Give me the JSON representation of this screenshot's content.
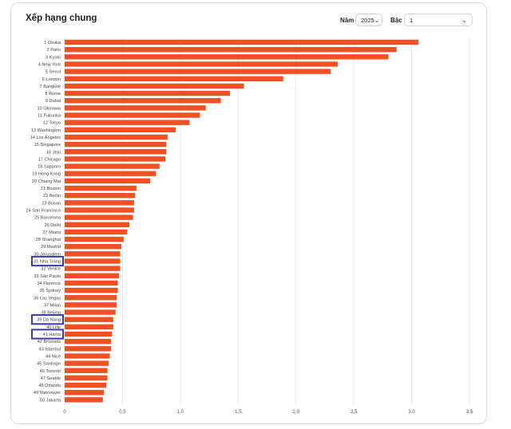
{
  "header": {
    "title": "Xếp hạng chung",
    "year_label": "Năm",
    "year_value": "2025",
    "tier_label": "Bậc",
    "tier_value": "1"
  },
  "colors": {
    "bar": "#f05022",
    "highlight": "#3a3ab0",
    "grid": "#e6e6e6"
  },
  "icons": {
    "dropdown": "chevron-down-icon"
  },
  "chart_data": {
    "type": "bar",
    "orientation": "horizontal",
    "title": "",
    "xlabel": "",
    "ylabel": "",
    "xlim": [
      0,
      3.5
    ],
    "x_ticks": [
      "0",
      "0,5",
      "1,0",
      "1,5",
      "2,0",
      "2,5",
      "3,0",
      "3,5"
    ],
    "grid": true,
    "categories": [
      "1 Osaka",
      "2 Paris",
      "3 Kyoto",
      "4 New York",
      "5 Seoul",
      "6 London",
      "7 Bangkok",
      "8 Rome",
      "9 Dubai",
      "10 Okinawa",
      "11 Fukuoka",
      "12 Tokyo",
      "13 Washington",
      "14 Los Angeles",
      "15 Singapore",
      "16 Jeju",
      "17 Chicago",
      "18 Sapporo",
      "19 Hong Kong",
      "20 Chiang Mai",
      "21 Boston",
      "22 Berlin",
      "23 Busan",
      "24 San Francisco",
      "25 Barcelona",
      "26 Delhi",
      "27 Miami",
      "28 Shanghai",
      "29 Madrid",
      "30 Jerusalem",
      "31 Nha Trang",
      "32 Venice",
      "33 São Paulo",
      "34 Florence",
      "35 Sydney",
      "36 Las Vegas",
      "37 Milan",
      "38 Beijing",
      "39 Da Nang",
      "40 Lille",
      "41 Hanoi",
      "42 Brussels",
      "43 Istanbul",
      "44 Nice",
      "45 Santiago",
      "46 Toronto",
      "47 Seattle",
      "48 Orlando",
      "49 Vancouver",
      "50 Jakarta"
    ],
    "values": [
      3.06,
      2.87,
      2.8,
      2.36,
      2.3,
      1.89,
      1.55,
      1.43,
      1.35,
      1.22,
      1.17,
      1.08,
      0.96,
      0.89,
      0.88,
      0.88,
      0.87,
      0.82,
      0.79,
      0.74,
      0.62,
      0.61,
      0.6,
      0.6,
      0.59,
      0.56,
      0.54,
      0.51,
      0.49,
      0.48,
      0.48,
      0.48,
      0.47,
      0.46,
      0.46,
      0.45,
      0.45,
      0.44,
      0.42,
      0.42,
      0.41,
      0.4,
      0.4,
      0.39,
      0.38,
      0.37,
      0.37,
      0.36,
      0.34,
      0.33
    ],
    "highlighted": [
      "31 Nha Trang",
      "39 Da Nang",
      "41 Hanoi"
    ]
  }
}
